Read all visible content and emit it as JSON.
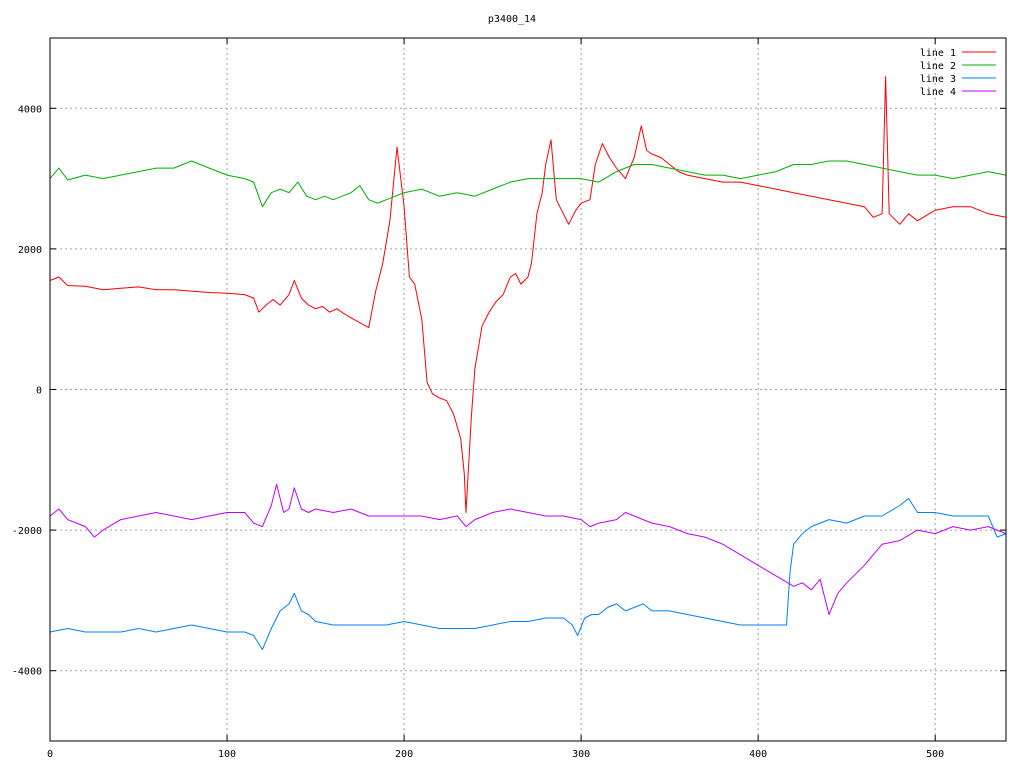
{
  "chart_data": {
    "type": "line",
    "title": "p3400_14",
    "xlabel": "",
    "ylabel": "",
    "xlim": [
      0,
      540
    ],
    "ylim": [
      -5000,
      5000
    ],
    "x_ticks": [
      0,
      100,
      200,
      300,
      400,
      500
    ],
    "y_ticks": [
      -4000,
      -2000,
      0,
      2000,
      4000
    ],
    "y_tick_labels": [
      "-4000",
      "-2000",
      "0",
      "2000",
      "4000"
    ],
    "grid": true,
    "legend_position": "top-right",
    "series": [
      {
        "name": "line 1",
        "color": "#ff0000",
        "points": [
          [
            0,
            1550
          ],
          [
            5,
            1600
          ],
          [
            10,
            1480
          ],
          [
            20,
            1470
          ],
          [
            30,
            1420
          ],
          [
            40,
            1440
          ],
          [
            50,
            1460
          ],
          [
            60,
            1420
          ],
          [
            70,
            1420
          ],
          [
            80,
            1400
          ],
          [
            90,
            1380
          ],
          [
            100,
            1370
          ],
          [
            110,
            1350
          ],
          [
            115,
            1300
          ],
          [
            118,
            1100
          ],
          [
            122,
            1200
          ],
          [
            126,
            1280
          ],
          [
            130,
            1200
          ],
          [
            135,
            1350
          ],
          [
            138,
            1550
          ],
          [
            142,
            1300
          ],
          [
            146,
            1200
          ],
          [
            150,
            1150
          ],
          [
            154,
            1180
          ],
          [
            158,
            1100
          ],
          [
            162,
            1150
          ],
          [
            166,
            1080
          ],
          [
            170,
            1020
          ],
          [
            175,
            950
          ],
          [
            180,
            880
          ],
          [
            184,
            1400
          ],
          [
            188,
            1800
          ],
          [
            192,
            2400
          ],
          [
            196,
            3450
          ],
          [
            200,
            2600
          ],
          [
            203,
            1600
          ],
          [
            206,
            1500
          ],
          [
            210,
            1000
          ],
          [
            213,
            100
          ],
          [
            216,
            -60
          ],
          [
            220,
            -120
          ],
          [
            224,
            -160
          ],
          [
            228,
            -350
          ],
          [
            232,
            -700
          ],
          [
            234,
            -1200
          ],
          [
            235,
            -1750
          ],
          [
            238,
            -400
          ],
          [
            240,
            300
          ],
          [
            244,
            900
          ],
          [
            248,
            1100
          ],
          [
            252,
            1250
          ],
          [
            256,
            1350
          ],
          [
            260,
            1600
          ],
          [
            263,
            1650
          ],
          [
            266,
            1500
          ],
          [
            270,
            1600
          ],
          [
            272,
            1800
          ],
          [
            275,
            2500
          ],
          [
            278,
            2800
          ],
          [
            280,
            3200
          ],
          [
            283,
            3550
          ],
          [
            286,
            2700
          ],
          [
            290,
            2500
          ],
          [
            293,
            2350
          ],
          [
            297,
            2550
          ],
          [
            300,
            2650
          ],
          [
            305,
            2700
          ],
          [
            308,
            3200
          ],
          [
            312,
            3500
          ],
          [
            316,
            3300
          ],
          [
            320,
            3150
          ],
          [
            325,
            3000
          ],
          [
            330,
            3300
          ],
          [
            334,
            3750
          ],
          [
            337,
            3400
          ],
          [
            340,
            3350
          ],
          [
            345,
            3300
          ],
          [
            350,
            3200
          ],
          [
            355,
            3100
          ],
          [
            360,
            3050
          ],
          [
            370,
            3000
          ],
          [
            380,
            2950
          ],
          [
            390,
            2950
          ],
          [
            400,
            2900
          ],
          [
            410,
            2850
          ],
          [
            420,
            2800
          ],
          [
            430,
            2750
          ],
          [
            440,
            2700
          ],
          [
            450,
            2650
          ],
          [
            460,
            2600
          ],
          [
            465,
            2450
          ],
          [
            470,
            2500
          ],
          [
            472,
            4450
          ],
          [
            474,
            2500
          ],
          [
            480,
            2350
          ],
          [
            485,
            2500
          ],
          [
            490,
            2400
          ],
          [
            500,
            2550
          ],
          [
            510,
            2600
          ],
          [
            520,
            2600
          ],
          [
            530,
            2500
          ],
          [
            540,
            2450
          ]
        ]
      },
      {
        "name": "line 2",
        "color": "#00b000",
        "points": [
          [
            0,
            3000
          ],
          [
            5,
            3150
          ],
          [
            10,
            2980
          ],
          [
            20,
            3050
          ],
          [
            30,
            3000
          ],
          [
            40,
            3050
          ],
          [
            50,
            3100
          ],
          [
            60,
            3150
          ],
          [
            70,
            3150
          ],
          [
            80,
            3250
          ],
          [
            90,
            3150
          ],
          [
            100,
            3050
          ],
          [
            110,
            3000
          ],
          [
            115,
            2950
          ],
          [
            120,
            2600
          ],
          [
            125,
            2800
          ],
          [
            130,
            2850
          ],
          [
            135,
            2800
          ],
          [
            140,
            2950
          ],
          [
            145,
            2750
          ],
          [
            150,
            2700
          ],
          [
            155,
            2750
          ],
          [
            160,
            2700
          ],
          [
            170,
            2800
          ],
          [
            175,
            2900
          ],
          [
            180,
            2700
          ],
          [
            185,
            2650
          ],
          [
            190,
            2700
          ],
          [
            200,
            2800
          ],
          [
            210,
            2850
          ],
          [
            220,
            2750
          ],
          [
            230,
            2800
          ],
          [
            240,
            2750
          ],
          [
            250,
            2850
          ],
          [
            260,
            2950
          ],
          [
            270,
            3000
          ],
          [
            280,
            3000
          ],
          [
            290,
            3000
          ],
          [
            300,
            3000
          ],
          [
            310,
            2950
          ],
          [
            320,
            3100
          ],
          [
            330,
            3200
          ],
          [
            340,
            3200
          ],
          [
            350,
            3150
          ],
          [
            360,
            3100
          ],
          [
            370,
            3050
          ],
          [
            380,
            3050
          ],
          [
            390,
            3000
          ],
          [
            400,
            3050
          ],
          [
            410,
            3100
          ],
          [
            420,
            3200
          ],
          [
            430,
            3200
          ],
          [
            440,
            3250
          ],
          [
            450,
            3250
          ],
          [
            460,
            3200
          ],
          [
            470,
            3150
          ],
          [
            480,
            3100
          ],
          [
            490,
            3050
          ],
          [
            500,
            3050
          ],
          [
            510,
            3000
          ],
          [
            520,
            3050
          ],
          [
            530,
            3100
          ],
          [
            540,
            3050
          ]
        ]
      },
      {
        "name": "line 3",
        "color": "#0080ff",
        "points": [
          [
            0,
            -3450
          ],
          [
            10,
            -3400
          ],
          [
            20,
            -3450
          ],
          [
            30,
            -3450
          ],
          [
            40,
            -3450
          ],
          [
            50,
            -3400
          ],
          [
            60,
            -3450
          ],
          [
            70,
            -3400
          ],
          [
            80,
            -3350
          ],
          [
            90,
            -3400
          ],
          [
            100,
            -3450
          ],
          [
            110,
            -3450
          ],
          [
            115,
            -3500
          ],
          [
            120,
            -3700
          ],
          [
            125,
            -3400
          ],
          [
            130,
            -3150
          ],
          [
            135,
            -3050
          ],
          [
            138,
            -2900
          ],
          [
            142,
            -3150
          ],
          [
            146,
            -3200
          ],
          [
            150,
            -3300
          ],
          [
            160,
            -3350
          ],
          [
            170,
            -3350
          ],
          [
            180,
            -3350
          ],
          [
            190,
            -3350
          ],
          [
            200,
            -3300
          ],
          [
            210,
            -3350
          ],
          [
            220,
            -3400
          ],
          [
            230,
            -3400
          ],
          [
            240,
            -3400
          ],
          [
            250,
            -3350
          ],
          [
            260,
            -3300
          ],
          [
            270,
            -3300
          ],
          [
            280,
            -3250
          ],
          [
            290,
            -3250
          ],
          [
            295,
            -3350
          ],
          [
            298,
            -3500
          ],
          [
            302,
            -3250
          ],
          [
            306,
            -3200
          ],
          [
            310,
            -3200
          ],
          [
            315,
            -3100
          ],
          [
            320,
            -3050
          ],
          [
            325,
            -3150
          ],
          [
            330,
            -3100
          ],
          [
            335,
            -3050
          ],
          [
            340,
            -3150
          ],
          [
            350,
            -3150
          ],
          [
            360,
            -3200
          ],
          [
            370,
            -3250
          ],
          [
            380,
            -3300
          ],
          [
            390,
            -3350
          ],
          [
            400,
            -3350
          ],
          [
            410,
            -3350
          ],
          [
            416,
            -3350
          ],
          [
            418,
            -2600
          ],
          [
            420,
            -2200
          ],
          [
            425,
            -2050
          ],
          [
            430,
            -1950
          ],
          [
            440,
            -1850
          ],
          [
            450,
            -1900
          ],
          [
            460,
            -1800
          ],
          [
            470,
            -1800
          ],
          [
            480,
            -1650
          ],
          [
            485,
            -1550
          ],
          [
            490,
            -1750
          ],
          [
            500,
            -1750
          ],
          [
            510,
            -1800
          ],
          [
            520,
            -1800
          ],
          [
            530,
            -1800
          ],
          [
            535,
            -2100
          ],
          [
            540,
            -2050
          ]
        ]
      },
      {
        "name": "line 4",
        "color": "#c000ff",
        "points": [
          [
            0,
            -1800
          ],
          [
            5,
            -1700
          ],
          [
            10,
            -1850
          ],
          [
            20,
            -1950
          ],
          [
            25,
            -2100
          ],
          [
            30,
            -2000
          ],
          [
            40,
            -1850
          ],
          [
            50,
            -1800
          ],
          [
            60,
            -1750
          ],
          [
            70,
            -1800
          ],
          [
            80,
            -1850
          ],
          [
            90,
            -1800
          ],
          [
            100,
            -1750
          ],
          [
            110,
            -1750
          ],
          [
            115,
            -1900
          ],
          [
            120,
            -1950
          ],
          [
            125,
            -1650
          ],
          [
            128,
            -1350
          ],
          [
            132,
            -1750
          ],
          [
            135,
            -1700
          ],
          [
            138,
            -1400
          ],
          [
            142,
            -1700
          ],
          [
            146,
            -1750
          ],
          [
            150,
            -1700
          ],
          [
            160,
            -1750
          ],
          [
            170,
            -1700
          ],
          [
            180,
            -1800
          ],
          [
            190,
            -1800
          ],
          [
            200,
            -1800
          ],
          [
            210,
            -1800
          ],
          [
            220,
            -1850
          ],
          [
            230,
            -1800
          ],
          [
            235,
            -1950
          ],
          [
            240,
            -1850
          ],
          [
            250,
            -1750
          ],
          [
            260,
            -1700
          ],
          [
            270,
            -1750
          ],
          [
            280,
            -1800
          ],
          [
            290,
            -1800
          ],
          [
            300,
            -1850
          ],
          [
            305,
            -1950
          ],
          [
            310,
            -1900
          ],
          [
            320,
            -1850
          ],
          [
            325,
            -1750
          ],
          [
            330,
            -1800
          ],
          [
            340,
            -1900
          ],
          [
            350,
            -1950
          ],
          [
            360,
            -2050
          ],
          [
            370,
            -2100
          ],
          [
            380,
            -2200
          ],
          [
            390,
            -2350
          ],
          [
            400,
            -2500
          ],
          [
            410,
            -2650
          ],
          [
            420,
            -2800
          ],
          [
            425,
            -2750
          ],
          [
            430,
            -2850
          ],
          [
            435,
            -2700
          ],
          [
            440,
            -3200
          ],
          [
            445,
            -2900
          ],
          [
            450,
            -2750
          ],
          [
            460,
            -2500
          ],
          [
            470,
            -2200
          ],
          [
            480,
            -2150
          ],
          [
            490,
            -2000
          ],
          [
            500,
            -2050
          ],
          [
            510,
            -1950
          ],
          [
            520,
            -2000
          ],
          [
            530,
            -1950
          ],
          [
            540,
            -2050
          ]
        ]
      }
    ]
  }
}
